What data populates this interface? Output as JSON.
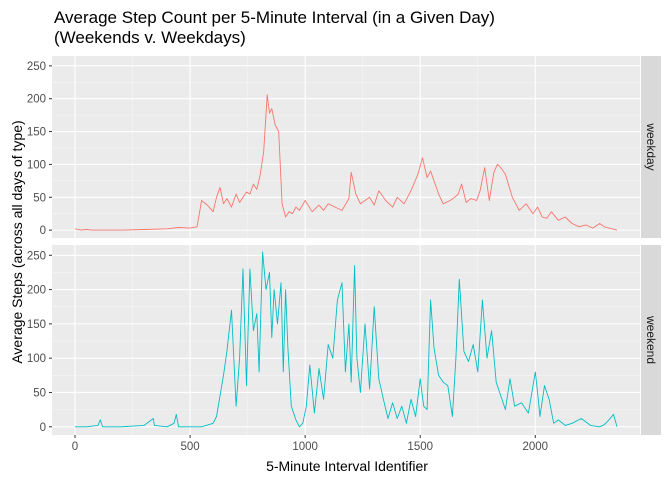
{
  "chart_data": {
    "type": "line",
    "title_lines": [
      "Average Step Count per 5-Minute Interval (in a Given Day)",
      "(Weekends v. Weekdays)"
    ],
    "xlabel": "5-Minute Interval Identifier",
    "ylabel": "Average Steps (across all days of type)",
    "xlim": [
      -100,
      2455
    ],
    "ylim": [
      -12,
      265
    ],
    "x_ticks": [
      0,
      500,
      1000,
      1500,
      2000
    ],
    "y_ticks": [
      0,
      50,
      100,
      150,
      200,
      250
    ],
    "grid": true,
    "legend": "none",
    "panel_background": "#ebebeb",
    "strip_background": "#d9d9d9",
    "series": [
      {
        "name": "weekday",
        "color": "#F8766D",
        "x": [
          0,
          25,
          50,
          75,
          100,
          150,
          200,
          300,
          400,
          450,
          500,
          530,
          550,
          575,
          600,
          615,
          630,
          645,
          660,
          680,
          700,
          715,
          730,
          745,
          760,
          775,
          790,
          805,
          820,
          835,
          845,
          855,
          870,
          885,
          900,
          915,
          930,
          945,
          960,
          975,
          1000,
          1030,
          1060,
          1080,
          1100,
          1130,
          1160,
          1190,
          1200,
          1220,
          1240,
          1260,
          1280,
          1300,
          1320,
          1350,
          1380,
          1400,
          1430,
          1460,
          1490,
          1510,
          1530,
          1545,
          1560,
          1580,
          1600,
          1630,
          1650,
          1665,
          1680,
          1700,
          1720,
          1745,
          1760,
          1780,
          1800,
          1820,
          1835,
          1850,
          1870,
          1900,
          1930,
          1960,
          1990,
          2010,
          2030,
          2050,
          2070,
          2100,
          2130,
          2160,
          2190,
          2220,
          2250,
          2280,
          2300,
          2320,
          2355
        ],
        "y": [
          2,
          0,
          1,
          0,
          0,
          0,
          0,
          1,
          2,
          4,
          3,
          5,
          45,
          38,
          28,
          50,
          65,
          40,
          48,
          35,
          55,
          42,
          50,
          58,
          55,
          70,
          62,
          85,
          120,
          206,
          178,
          185,
          160,
          150,
          40,
          20,
          28,
          25,
          35,
          30,
          45,
          28,
          38,
          30,
          40,
          35,
          30,
          48,
          88,
          55,
          40,
          45,
          50,
          38,
          60,
          45,
          35,
          50,
          40,
          60,
          85,
          110,
          80,
          90,
          75,
          55,
          40,
          45,
          50,
          55,
          70,
          42,
          48,
          45,
          60,
          95,
          45,
          88,
          100,
          95,
          85,
          50,
          30,
          40,
          25,
          35,
          20,
          18,
          28,
          15,
          20,
          10,
          5,
          8,
          3,
          10,
          5,
          3,
          0
        ]
      },
      {
        "name": "weekend",
        "color": "#00BFC4",
        "x": [
          0,
          50,
          100,
          110,
          120,
          200,
          300,
          340,
          345,
          400,
          430,
          440,
          450,
          500,
          550,
          600,
          615,
          630,
          645,
          660,
          680,
          700,
          715,
          730,
          745,
          760,
          775,
          790,
          800,
          815,
          830,
          845,
          855,
          865,
          880,
          895,
          905,
          915,
          925,
          940,
          960,
          975,
          990,
          1005,
          1020,
          1040,
          1060,
          1080,
          1100,
          1120,
          1140,
          1160,
          1175,
          1190,
          1200,
          1215,
          1225,
          1240,
          1260,
          1280,
          1300,
          1320,
          1340,
          1360,
          1380,
          1400,
          1420,
          1440,
          1460,
          1480,
          1500,
          1515,
          1530,
          1545,
          1560,
          1580,
          1600,
          1620,
          1640,
          1655,
          1670,
          1690,
          1710,
          1730,
          1750,
          1770,
          1790,
          1810,
          1830,
          1850,
          1870,
          1890,
          1910,
          1940,
          1970,
          2000,
          2010,
          2020,
          2040,
          2060,
          2080,
          2100,
          2130,
          2160,
          2200,
          2240,
          2280,
          2300,
          2320,
          2340,
          2355
        ],
        "y": [
          0,
          0,
          2,
          10,
          0,
          0,
          2,
          12,
          2,
          0,
          5,
          18,
          0,
          0,
          0,
          5,
          15,
          45,
          75,
          110,
          170,
          30,
          100,
          230,
          60,
          230,
          140,
          165,
          80,
          255,
          200,
          225,
          130,
          200,
          150,
          210,
          80,
          200,
          115,
          30,
          10,
          0,
          5,
          30,
          90,
          20,
          85,
          40,
          120,
          100,
          185,
          210,
          80,
          150,
          65,
          235,
          100,
          50,
          150,
          55,
          175,
          70,
          40,
          12,
          35,
          12,
          30,
          5,
          40,
          15,
          70,
          30,
          25,
          185,
          115,
          75,
          65,
          60,
          15,
          100,
          215,
          110,
          95,
          120,
          80,
          185,
          100,
          140,
          65,
          45,
          25,
          70,
          30,
          35,
          20,
          80,
          50,
          15,
          60,
          40,
          5,
          10,
          2,
          5,
          12,
          2,
          0,
          3,
          10,
          18,
          0
        ]
      }
    ]
  }
}
